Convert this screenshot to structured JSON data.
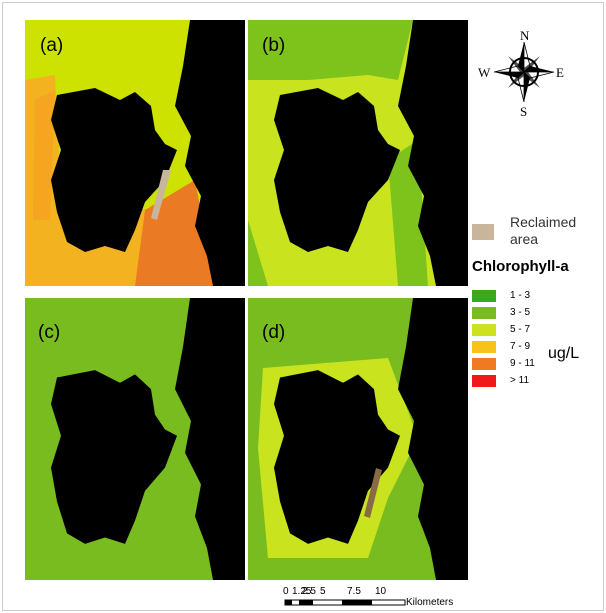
{
  "panels": [
    "(a)",
    "(b)",
    "(c)",
    "(d)"
  ],
  "compass": {
    "n": "N",
    "s": "S",
    "e": "E",
    "w": "W"
  },
  "legend": {
    "reclaimed": "Reclaimed area",
    "title": "Chlorophyll-a",
    "unit": "ug/L",
    "items": [
      {
        "label": "1 - 3",
        "color": "#3aa81c"
      },
      {
        "label": "3 - 5",
        "color": "#79bc1f"
      },
      {
        "label": "5 - 7",
        "color": "#cde21e"
      },
      {
        "label": "7 - 9",
        "color": "#f7c21a"
      },
      {
        "label": "9 - 11",
        "color": "#ef7a22"
      },
      {
        "label": "> 11",
        "color": "#f01818"
      }
    ]
  },
  "scale_bar": {
    "labels": [
      "0",
      "1.25",
      "2.5",
      "5",
      "7.5",
      "10"
    ],
    "unit": "Kilometers"
  }
}
